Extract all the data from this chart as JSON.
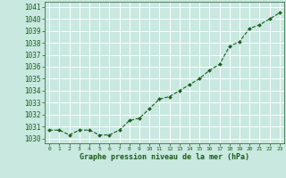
{
  "hours": [
    0,
    1,
    2,
    3,
    4,
    5,
    6,
    7,
    8,
    9,
    10,
    11,
    12,
    13,
    14,
    15,
    16,
    17,
    18,
    19,
    20,
    21,
    22,
    23
  ],
  "pressure": [
    1030.7,
    1030.7,
    1030.3,
    1030.7,
    1030.7,
    1030.3,
    1030.3,
    1030.7,
    1031.5,
    1031.7,
    1032.5,
    1033.3,
    1033.5,
    1034.0,
    1034.5,
    1035.0,
    1035.7,
    1036.2,
    1037.7,
    1038.1,
    1039.2,
    1039.5,
    1040.0,
    1040.5
  ],
  "line_color": "#1a5c1a",
  "marker": "D",
  "marker_size": 2.0,
  "bg_color": "#c8e8e0",
  "grid_color": "#ffffff",
  "ylabel_ticks": [
    1030,
    1031,
    1032,
    1033,
    1034,
    1035,
    1036,
    1037,
    1038,
    1039,
    1040,
    1041
  ],
  "ylim": [
    1029.6,
    1041.4
  ],
  "xlim": [
    -0.5,
    23.5
  ],
  "xlabel": "Graphe pression niveau de la mer (hPa)",
  "xlabel_color": "#1a5c1a",
  "tick_color": "#1a5c1a",
  "axis_color": "#1a5c1a",
  "ytick_fontsize": 5.5,
  "xtick_fontsize": 4.5,
  "xlabel_fontsize": 6.0
}
